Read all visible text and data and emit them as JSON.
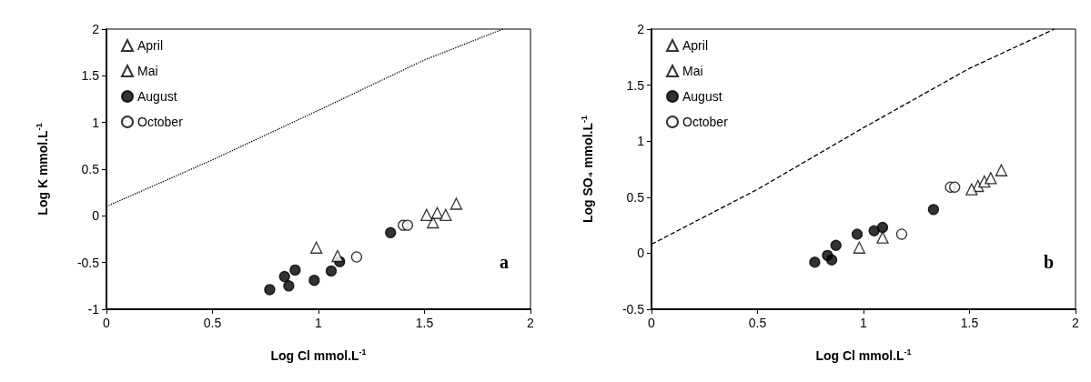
{
  "chart_data": [
    {
      "type": "scatter",
      "xlabel": "Log Cl mmol.L$^{-1}$",
      "ylabel": "Log K mmol.L$^{-1}$",
      "xlim": [
        0,
        2
      ],
      "xticks": [
        0,
        0.5,
        1,
        1.5,
        2
      ],
      "ylim": [
        -1,
        2
      ],
      "yticks": [
        -1,
        -0.5,
        0,
        0.5,
        1,
        1.5,
        2
      ],
      "legend": "top left",
      "grid": false,
      "annotations": [
        "a"
      ],
      "series": [
        {
          "name": "April",
          "color": "#ffffff",
          "marker": "triangle",
          "x": [
            0.99,
            1.09,
            1.51,
            1.65
          ],
          "values": [
            -0.34,
            -0.43,
            0.01,
            0.13
          ]
        },
        {
          "name": "Mai",
          "color": "#ffffff",
          "marker": "triangle",
          "x": [
            1.54,
            1.56,
            1.6
          ],
          "values": [
            -0.07,
            0.03,
            0.01
          ]
        },
        {
          "name": "August",
          "color": "#000000",
          "marker": "circle",
          "x": [
            0.77,
            0.84,
            0.86,
            0.89,
            0.98,
            1.06,
            1.1,
            1.34
          ],
          "values": [
            -0.79,
            -0.65,
            -0.75,
            -0.58,
            -0.69,
            -0.59,
            -0.49,
            -0.18
          ]
        },
        {
          "name": "October",
          "color": "#ffffff",
          "marker": "circle",
          "x": [
            1.18,
            1.4,
            1.42
          ],
          "values": [
            -0.44,
            -0.1,
            -0.1
          ]
        },
        {
          "type": "line",
          "color": "#000000",
          "line_style": "dotted",
          "marker": "none",
          "x": [
            0,
            0.5,
            1,
            1.5,
            1.87
          ],
          "values": [
            0.1,
            0.6,
            1.13,
            1.67,
            2
          ]
        }
      ]
    },
    {
      "type": "scatter",
      "xlabel": "Log Cl mmol.L$^{-1}$",
      "ylabel": "Log SO₄ mmol.L$^{-1}$",
      "xlim": [
        0,
        2
      ],
      "xticks": [
        0,
        0.5,
        1,
        1.5,
        2
      ],
      "ylim": [
        -0.5,
        2
      ],
      "yticks": [
        -0.5,
        0,
        0.5,
        1,
        1.5,
        2
      ],
      "legend": "top left",
      "grid": false,
      "annotations": [
        "b"
      ],
      "series": [
        {
          "name": "April",
          "color": "#ffffff",
          "marker": "triangle",
          "x": [
            0.98,
            1.09,
            1.51,
            1.65
          ],
          "values": [
            0.05,
            0.14,
            0.57,
            0.74
          ]
        },
        {
          "name": "Mai",
          "color": "#ffffff",
          "marker": "triangle",
          "x": [
            1.54,
            1.57,
            1.6
          ],
          "values": [
            0.6,
            0.64,
            0.67
          ]
        },
        {
          "name": "August",
          "color": "#000000",
          "marker": "circle",
          "x": [
            0.77,
            0.83,
            0.85,
            0.87,
            0.97,
            1.05,
            1.09,
            1.33
          ],
          "values": [
            -0.08,
            -0.02,
            -0.06,
            0.07,
            0.17,
            0.2,
            0.23,
            0.39
          ]
        },
        {
          "name": "October",
          "color": "#ffffff",
          "marker": "circle",
          "x": [
            1.18,
            1.41,
            1.43
          ],
          "values": [
            0.17,
            0.59,
            0.59
          ]
        },
        {
          "type": "line",
          "color": "#000000",
          "line_style": "dashed",
          "marker": "none",
          "x": [
            0,
            0.5,
            1,
            1.5,
            1.9
          ],
          "values": [
            0.08,
            0.57,
            1.12,
            1.65,
            2
          ]
        }
      ]
    }
  ]
}
